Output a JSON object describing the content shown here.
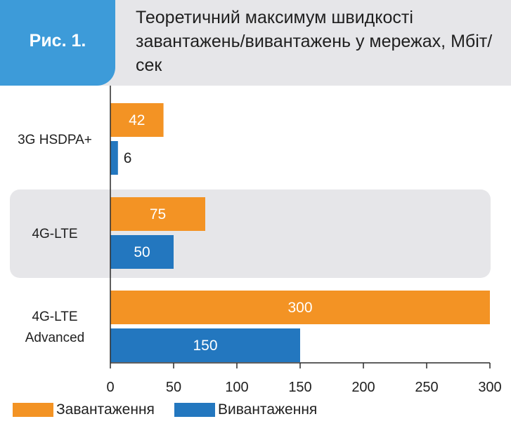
{
  "figure_label": "Рис. 1.",
  "chart_data": {
    "type": "bar",
    "orientation": "horizontal",
    "title": "Теоретичний максимум швидкості завантажень/вивантажень у мережах, Мбіт/сек",
    "categories": [
      "3G HSDPA+",
      "4G-LTE",
      "4G-LTE Advanced"
    ],
    "series": [
      {
        "name": "Завантаження",
        "values": [
          42,
          75,
          300
        ],
        "color": "#f39324"
      },
      {
        "name": "Вивантаження",
        "values": [
          6,
          50,
          150
        ],
        "color": "#2377bf"
      }
    ],
    "xlim": [
      0,
      300
    ],
    "x_ticks": [
      0,
      50,
      100,
      150,
      200,
      250,
      300
    ],
    "grid": false,
    "highlighted_category": "4G-LTE",
    "highlight_color": "#e6e6e9",
    "legend_position": "bottom-left"
  }
}
